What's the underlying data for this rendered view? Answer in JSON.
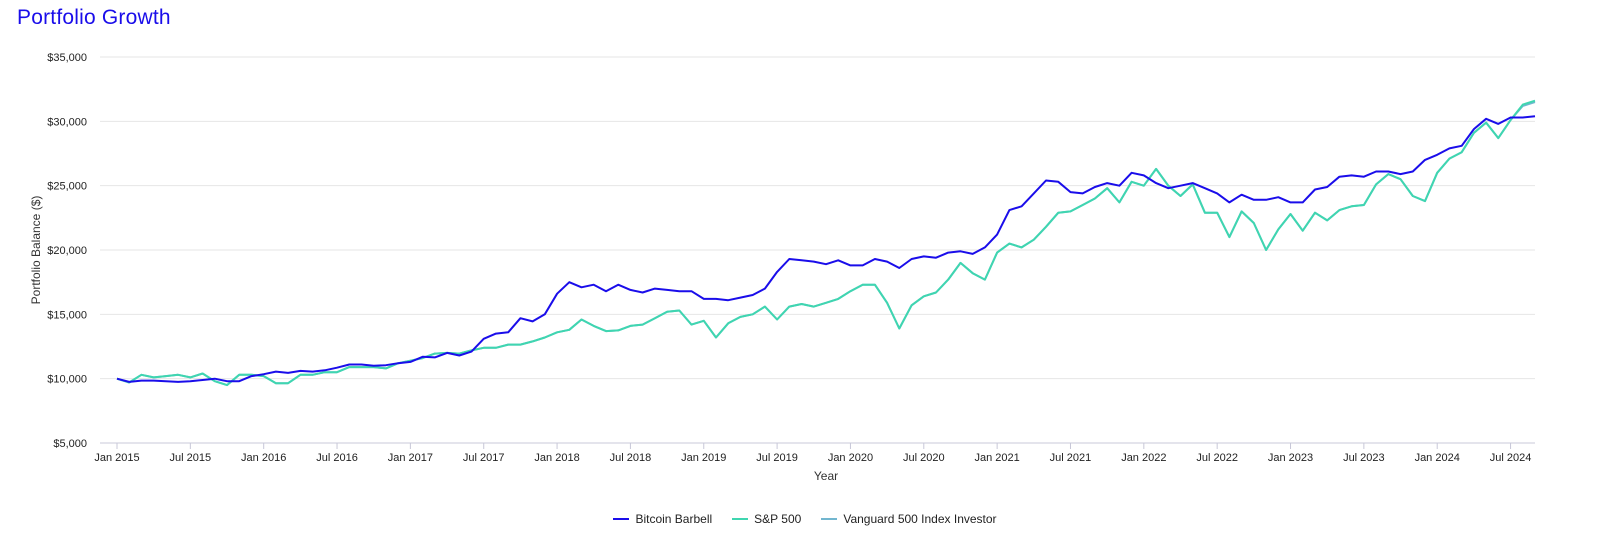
{
  "chart_data": {
    "type": "line",
    "title": "Portfolio Growth",
    "xlabel": "Year",
    "ylabel": "Portfolio Balance ($)",
    "ylim": [
      5000,
      35000
    ],
    "yticks": [
      5000,
      10000,
      15000,
      20000,
      25000,
      30000,
      35000
    ],
    "ytick_labels": [
      "$5,000",
      "$10,000",
      "$15,000",
      "$20,000",
      "$25,000",
      "$30,000",
      "$35,000"
    ],
    "xlim": [
      "2015-01",
      "2024-09"
    ],
    "xticks": [
      "2015-01",
      "2015-07",
      "2016-01",
      "2016-07",
      "2017-01",
      "2017-07",
      "2018-01",
      "2018-07",
      "2019-01",
      "2019-07",
      "2020-01",
      "2020-07",
      "2021-01",
      "2021-07",
      "2022-01",
      "2022-07",
      "2023-01",
      "2023-07",
      "2024-01",
      "2024-07"
    ],
    "xtick_labels": [
      "Jan 2015",
      "Jul 2015",
      "Jan 2016",
      "Jul 2016",
      "Jan 2017",
      "Jul 2017",
      "Jan 2018",
      "Jul 2018",
      "Jan 2019",
      "Jul 2019",
      "Jan 2020",
      "Jul 2020",
      "Jan 2021",
      "Jul 2021",
      "Jan 2022",
      "Jul 2022",
      "Jan 2023",
      "Jul 2023",
      "Jan 2024",
      "Jul 2024"
    ],
    "grid": true,
    "legend": "bottom",
    "x_start": "2015-01",
    "series": [
      {
        "name": "Bitcoin Barbell",
        "color": "#1a0dea",
        "values": [
          10000,
          9750,
          9850,
          9850,
          9800,
          9750,
          9800,
          9900,
          10000,
          9800,
          9800,
          10200,
          10350,
          10550,
          10450,
          10600,
          10550,
          10650,
          10850,
          11100,
          11100,
          11000,
          11050,
          11200,
          11300,
          11700,
          11650,
          12000,
          11800,
          12100,
          13100,
          13500,
          13600,
          14700,
          14450,
          15000,
          16600,
          17500,
          17100,
          17300,
          16800,
          17300,
          16900,
          16700,
          17000,
          16900,
          16800,
          16800,
          16200,
          16200,
          16100,
          16300,
          16500,
          17000,
          18300,
          19300,
          19200,
          19100,
          18900,
          19200,
          18800,
          18800,
          19300,
          19100,
          18600,
          19300,
          19500,
          19400,
          19800,
          19900,
          19700,
          20200,
          21200,
          23100,
          23400,
          24400,
          25400,
          25300,
          24500,
          24400,
          24900,
          25200,
          25000,
          26000,
          25800,
          25200,
          24800,
          25000,
          25200,
          24800,
          24400,
          23700,
          24300,
          23900,
          23900,
          24100,
          23700,
          23700,
          24700,
          24900,
          25700,
          25800,
          25700,
          26100,
          26100,
          25900,
          26100,
          27000,
          27400,
          27900,
          28100,
          29400,
          30200,
          29800,
          30300,
          30300,
          30400
        ]
      },
      {
        "name": "S&P 500",
        "color": "#3fd6b0",
        "values": [
          10000,
          9700,
          10300,
          10100,
          10200,
          10300,
          10100,
          10400,
          9800,
          9500,
          10300,
          10300,
          10200,
          9650,
          9650,
          10300,
          10300,
          10500,
          10500,
          10900,
          10900,
          10900,
          10800,
          11200,
          11400,
          11600,
          11950,
          12000,
          11950,
          12200,
          12400,
          12400,
          12650,
          12650,
          12900,
          13200,
          13600,
          13800,
          14600,
          14100,
          13700,
          13750,
          14100,
          14200,
          14700,
          15200,
          15300,
          14200,
          14500,
          13200,
          14300,
          14800,
          15000,
          15600,
          14600,
          15600,
          15800,
          15600,
          15900,
          16200,
          16800,
          17300,
          17300,
          15900,
          13900,
          15700,
          16400,
          16700,
          17700,
          19000,
          18200,
          17700,
          19800,
          20500,
          20200,
          20800,
          21800,
          22900,
          23000,
          23500,
          24000,
          24800,
          23700,
          25300,
          25000,
          26300,
          25000,
          24200,
          25100,
          22900,
          22900,
          21000,
          23000,
          22100,
          20000,
          21600,
          22800,
          21500,
          22900,
          22300,
          23100,
          23400,
          23500,
          25100,
          25900,
          25500,
          24200,
          23800,
          26000,
          27100,
          27600,
          29100,
          29900,
          28700,
          30100,
          31300,
          31600
        ]
      },
      {
        "name": "Vanguard 500 Index Investor",
        "color": "#72b6cf",
        "values": [
          10000,
          9700,
          10300,
          10100,
          10200,
          10300,
          10100,
          10400,
          9800,
          9500,
          10300,
          10300,
          10200,
          9650,
          9650,
          10300,
          10300,
          10500,
          10500,
          10900,
          10900,
          10900,
          10800,
          11200,
          11400,
          11600,
          11950,
          12000,
          11950,
          12200,
          12400,
          12400,
          12650,
          12650,
          12900,
          13200,
          13600,
          13800,
          14600,
          14100,
          13700,
          13750,
          14100,
          14200,
          14700,
          15200,
          15300,
          14200,
          14500,
          13200,
          14300,
          14800,
          15000,
          15600,
          14600,
          15600,
          15800,
          15600,
          15900,
          16200,
          16800,
          17300,
          17300,
          15900,
          13900,
          15700,
          16400,
          16700,
          17700,
          19000,
          18200,
          17700,
          19800,
          20500,
          20200,
          20800,
          21800,
          22900,
          23000,
          23500,
          24000,
          24800,
          23700,
          25300,
          25000,
          26300,
          25000,
          24200,
          25100,
          22900,
          22900,
          21000,
          23000,
          22100,
          20000,
          21600,
          22800,
          21500,
          22900,
          22300,
          23100,
          23400,
          23500,
          25100,
          25900,
          25500,
          24200,
          23800,
          26000,
          27100,
          27600,
          29100,
          29900,
          28700,
          30100,
          31200,
          31500
        ]
      }
    ]
  }
}
